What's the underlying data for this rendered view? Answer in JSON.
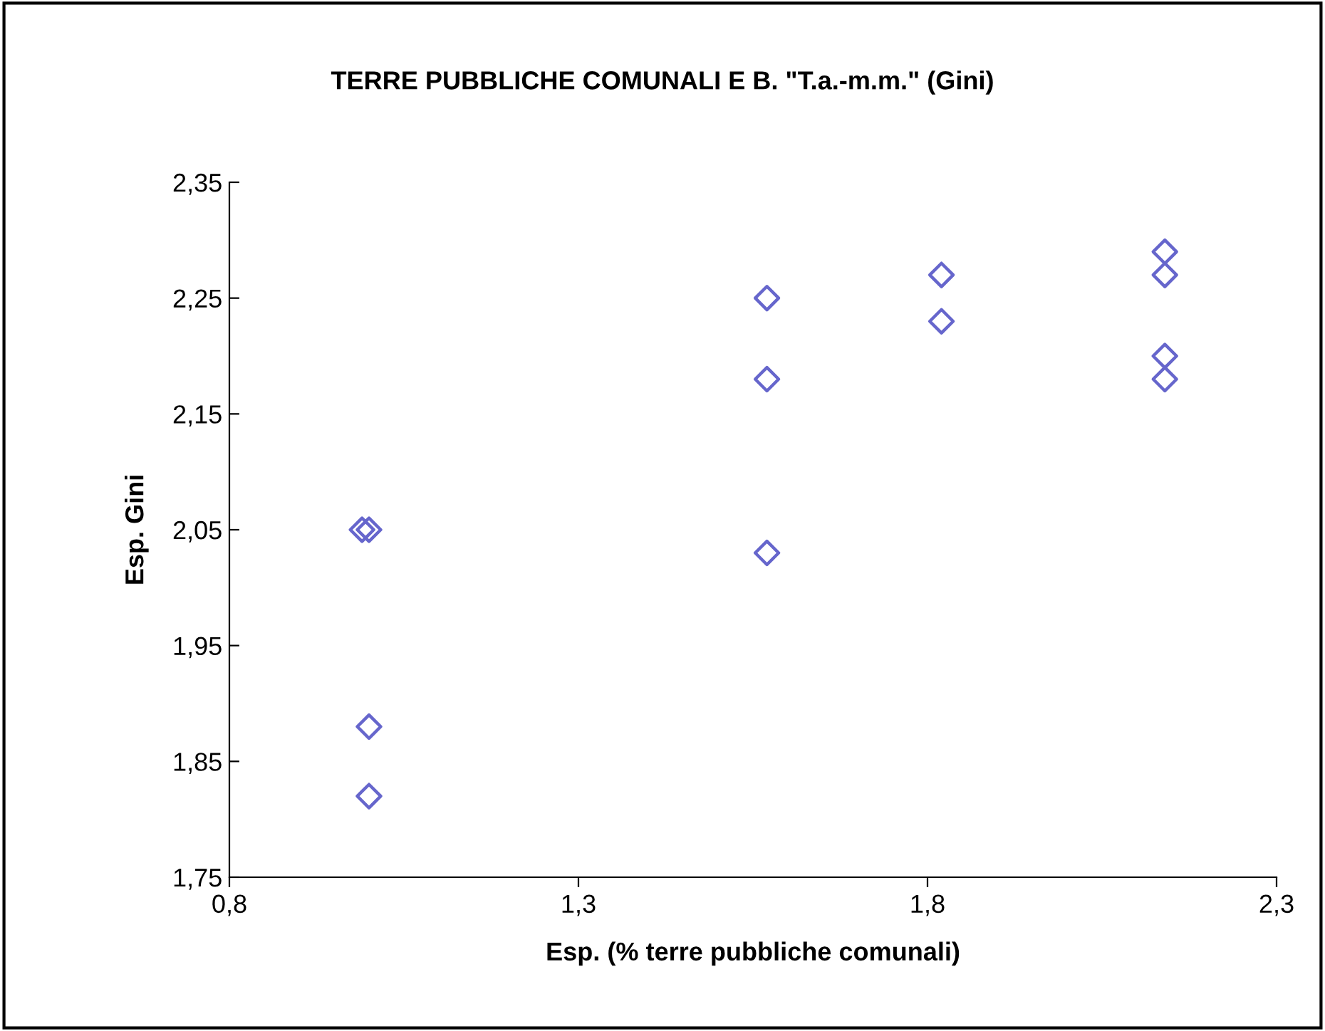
{
  "chart_data": {
    "type": "scatter",
    "title": "TERRE PUBBLICHE COMUNALI E B. \"T.a.-m.m.\" (Gini)",
    "xlabel": "Esp. (% terre pubbliche comunali)",
    "ylabel": "Esp. Gini",
    "series": [
      {
        "color": "#6666cc",
        "x": [
          0.99,
          1.0,
          1.0,
          1.0,
          1.57,
          1.57,
          1.57,
          1.82,
          1.82,
          2.14,
          2.14,
          2.14,
          2.14
        ],
        "values": [
          2.05,
          2.05,
          1.88,
          1.82,
          2.25,
          2.18,
          2.03,
          2.27,
          2.23,
          2.29,
          2.27,
          2.2,
          2.18
        ]
      }
    ],
    "xlim": [
      0.8,
      2.3
    ],
    "xticks": [
      {
        "value": 0.8,
        "label": "0,8"
      },
      {
        "value": 1.3,
        "label": "1,3"
      },
      {
        "value": 1.8,
        "label": "1,8"
      },
      {
        "value": 2.3,
        "label": "2,3"
      }
    ],
    "ylim": [
      1.75,
      2.35
    ],
    "yticks": [
      {
        "value": 1.75,
        "label": "1,75"
      },
      {
        "value": 1.85,
        "label": "1,85"
      },
      {
        "value": 1.95,
        "label": "1,95"
      },
      {
        "value": 2.05,
        "label": "2,05"
      },
      {
        "value": 2.15,
        "label": "2,15"
      },
      {
        "value": 2.25,
        "label": "2,25"
      },
      {
        "value": 2.35,
        "label": "2,35"
      }
    ],
    "marker": "diamond",
    "grid": false,
    "legend": false
  }
}
